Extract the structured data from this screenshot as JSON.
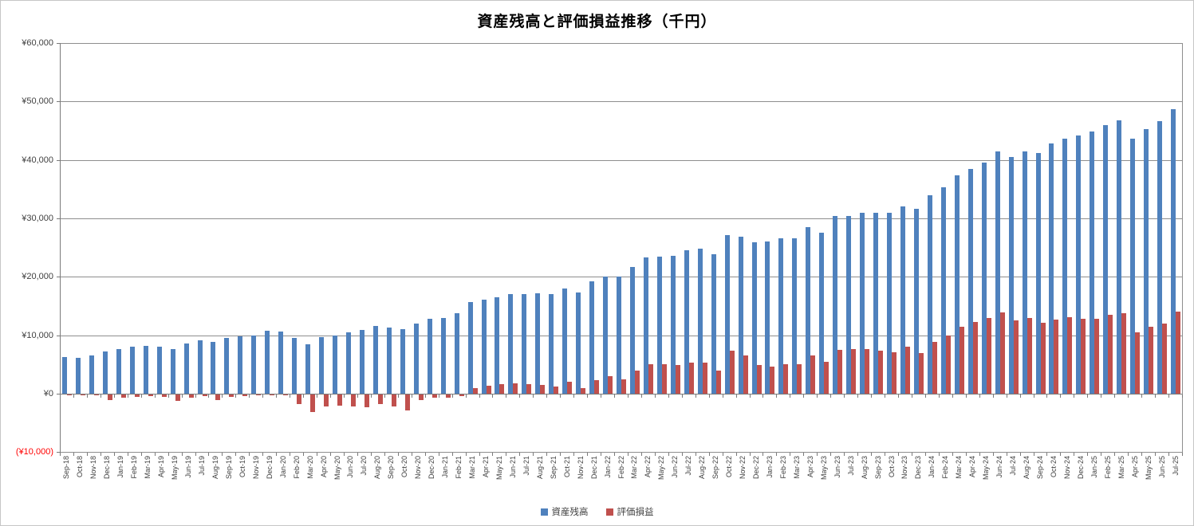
{
  "title": "資産残高と評価損益推移（千円）",
  "colors": {
    "asset": "#4f81bd",
    "profit_loss": "#c0504d",
    "gridline": "#8e8e8e",
    "axis": "#7a7a7a",
    "tick_label": "#3f3f3f",
    "negative_tick_label": "#ff0000"
  },
  "y_axis": {
    "ticks": [
      {
        "label": "¥60,000",
        "value": 60000,
        "negative": false
      },
      {
        "label": "¥50,000",
        "value": 50000,
        "negative": false
      },
      {
        "label": "¥40,000",
        "value": 40000,
        "negative": false
      },
      {
        "label": "¥30,000",
        "value": 30000,
        "negative": false
      },
      {
        "label": "¥20,000",
        "value": 20000,
        "negative": false
      },
      {
        "label": "¥10,000",
        "value": 10000,
        "negative": false
      },
      {
        "label": "¥0",
        "value": 0,
        "negative": false
      },
      {
        "label": "(¥10,000)",
        "value": -10000,
        "negative": true
      }
    ]
  },
  "legend": [
    {
      "label": "資産残高",
      "color": "#4f81bd"
    },
    {
      "label": "評価損益",
      "color": "#c0504d"
    }
  ],
  "chart_data": {
    "type": "bar",
    "title": "資産残高と評価損益推移（千円）",
    "unit": "千円",
    "ylim": [
      -10000,
      60000
    ],
    "y_tick_step": 10000,
    "grid": true,
    "legend_position": "bottom",
    "categories": [
      "Sep-18",
      "Oct-18",
      "Nov-18",
      "Dec-18",
      "Jan-19",
      "Feb-19",
      "Mar-19",
      "Apr-19",
      "May-19",
      "Jun-19",
      "Jul-19",
      "Aug-19",
      "Sep-19",
      "Oct-19",
      "Nov-19",
      "Dec-19",
      "Jan-20",
      "Feb-20",
      "Mar-20",
      "Apr-20",
      "May-20",
      "Jun-20",
      "Jul-20",
      "Aug-20",
      "Sep-20",
      "Oct-20",
      "Nov-20",
      "Dec-20",
      "Jan-21",
      "Feb-21",
      "Mar-21",
      "Apr-21",
      "May-21",
      "Jun-21",
      "Jul-21",
      "Aug-21",
      "Sep-21",
      "Oct-21",
      "Nov-21",
      "Dec-21",
      "Jan-22",
      "Feb-22",
      "Mar-22",
      "Apr-22",
      "May-22",
      "Jun-22",
      "Jul-22",
      "Aug-22",
      "Sep-22",
      "Oct-22",
      "Nov-22",
      "Dec-22",
      "Jan-23",
      "Feb-23",
      "Mar-23",
      "Apr-23",
      "May-23",
      "Jun-23",
      "Jul-23",
      "Aug-23",
      "Sep-23",
      "Oct-23",
      "Nov-23",
      "Dec-23",
      "Jan-24",
      "Feb-24",
      "Mar-24",
      "Apr-24",
      "May-24",
      "Jun-24",
      "Jul-24",
      "Aug-24",
      "Sep-24",
      "Oct-24",
      "Nov-24",
      "Dec-24",
      "Jan-25",
      "Feb-25",
      "Mar-25",
      "Apr-25",
      "May-25",
      "Jun-25",
      "Jul-25"
    ],
    "series": [
      {
        "name": "資産残高",
        "color": "#4f81bd",
        "values": [
          6300,
          6200,
          6500,
          7200,
          7600,
          8000,
          8200,
          8100,
          7600,
          8600,
          9200,
          8900,
          9500,
          9800,
          9900,
          10800,
          10600,
          9600,
          8500,
          9700,
          9900,
          10500,
          10900,
          11600,
          11300,
          11000,
          12000,
          12800,
          12900,
          13800,
          15700,
          16100,
          16500,
          17000,
          17000,
          17200,
          17000,
          18000,
          17300,
          19200,
          20000,
          20000,
          21700,
          23300,
          23500,
          23600,
          24500,
          24800,
          23800,
          27200,
          26800,
          25900,
          26000,
          26600,
          26600,
          28500,
          27600,
          30400,
          30400,
          31000,
          31000,
          31000,
          32100,
          31600,
          33900,
          35300,
          37300,
          38500,
          39600,
          41400,
          40500,
          41500,
          41200,
          42800,
          43600,
          44200,
          44900,
          46000,
          46800,
          43700,
          45300,
          46600,
          48700
        ]
      },
      {
        "name": "評価損益",
        "color": "#c0504d",
        "values": [
          -100,
          -100,
          -150,
          -900,
          -500,
          -450,
          -300,
          -450,
          -1100,
          -600,
          -300,
          -1000,
          -400,
          -300,
          -150,
          -150,
          -200,
          -1600,
          -3000,
          -2000,
          -1900,
          -2100,
          -2200,
          -1600,
          -2000,
          -2700,
          -1000,
          -600,
          -600,
          -300,
          1000,
          1400,
          1700,
          1800,
          1700,
          1550,
          1200,
          2000,
          1000,
          2300,
          3000,
          2500,
          4000,
          5000,
          5100,
          4900,
          5300,
          5300,
          4000,
          7400,
          6500,
          4900,
          4700,
          5100,
          5000,
          6500,
          5500,
          7500,
          7700,
          7600,
          7300,
          7100,
          8100,
          6900,
          8800,
          9900,
          11500,
          12300,
          13000,
          13900,
          12500,
          12900,
          12200,
          12700,
          13100,
          12800,
          12800,
          13500,
          13800,
          10500,
          11500,
          12000,
          14000
        ]
      }
    ]
  }
}
